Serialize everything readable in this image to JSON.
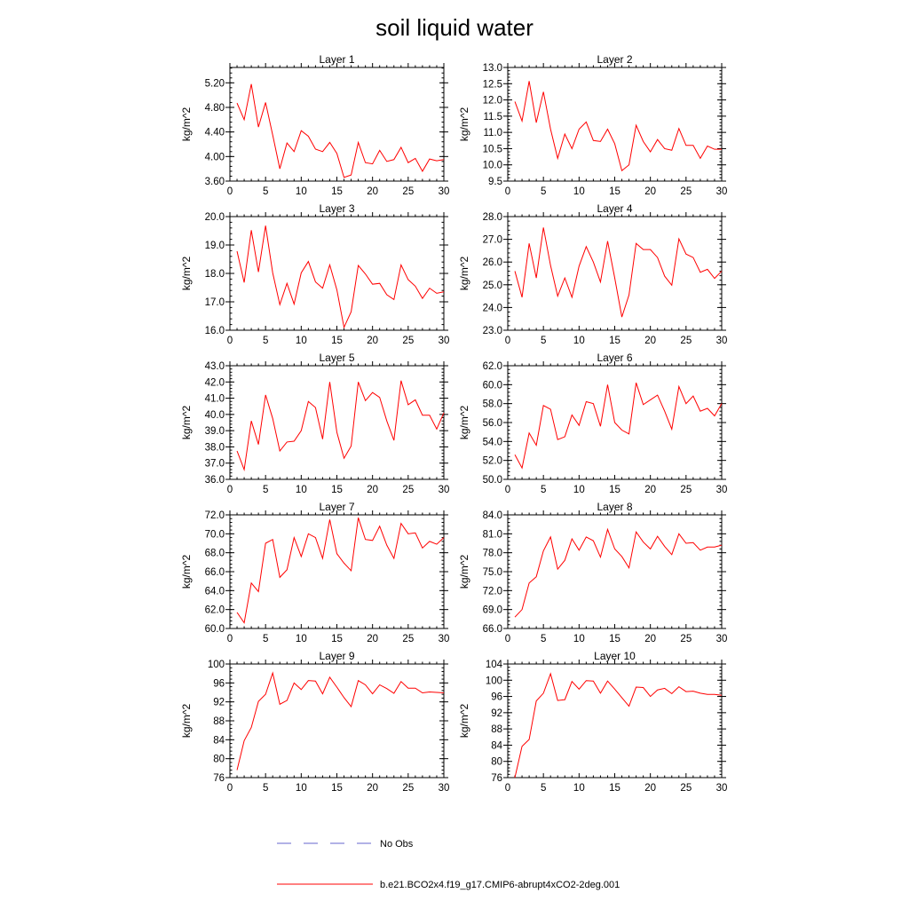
{
  "chart_data": {
    "type": "line",
    "title": "soil liquid water",
    "x": [
      1,
      2,
      3,
      4,
      5,
      6,
      7,
      8,
      9,
      10,
      11,
      12,
      13,
      14,
      15,
      16,
      17,
      18,
      19,
      20,
      21,
      22,
      23,
      24,
      25,
      26,
      27,
      28,
      29,
      30
    ],
    "xlim": [
      0,
      30
    ],
    "xticks": [
      0,
      5,
      10,
      15,
      20,
      25,
      30
    ],
    "legend": {
      "placement": "bottom-center",
      "entries": [
        {
          "name": "No Obs",
          "color": "#6666cc",
          "style": "dashed"
        },
        {
          "name": "b.e21.BCO2x4.f19_g17.CMIP6-abrupt4xCO2-2deg.001",
          "color": "#ff0000",
          "style": "solid"
        }
      ]
    },
    "panels": [
      {
        "title": "Layer 1",
        "ylabel": "kg/m^2",
        "ylim": [
          3.6,
          5.45
        ],
        "yticks": [
          "3.60",
          "4.00",
          "4.40",
          "4.80",
          "5.20"
        ],
        "values": [
          4.87,
          4.6,
          5.18,
          4.48,
          4.88,
          4.35,
          3.8,
          4.22,
          4.08,
          4.42,
          4.33,
          4.12,
          4.08,
          4.23,
          4.05,
          3.66,
          3.7,
          4.23,
          3.9,
          3.88,
          4.1,
          3.92,
          3.95,
          4.15,
          3.9,
          3.97,
          3.76,
          3.96,
          3.93,
          3.95
        ]
      },
      {
        "title": "Layer 2",
        "ylabel": "kg/m^2",
        "ylim": [
          9.5,
          13.0
        ],
        "yticks": [
          "9.5",
          "10.0",
          "10.5",
          "11.0",
          "11.5",
          "12.0",
          "12.5",
          "13.0"
        ],
        "values": [
          11.95,
          11.35,
          12.58,
          11.3,
          12.25,
          11.1,
          10.2,
          10.95,
          10.5,
          11.1,
          11.32,
          10.75,
          10.72,
          11.1,
          10.65,
          9.82,
          10.0,
          11.22,
          10.72,
          10.4,
          10.78,
          10.5,
          10.45,
          11.12,
          10.6,
          10.6,
          10.2,
          10.58,
          10.48,
          10.48
        ]
      },
      {
        "title": "Layer 3",
        "ylabel": "kg/m^2",
        "ylim": [
          16.0,
          20.0
        ],
        "yticks": [
          "16.0",
          "17.0",
          "18.0",
          "19.0",
          "20.0"
        ],
        "values": [
          18.78,
          17.68,
          19.52,
          18.05,
          19.68,
          18.02,
          16.9,
          17.65,
          16.92,
          18.02,
          18.42,
          17.7,
          17.48,
          18.3,
          17.42,
          16.1,
          16.65,
          18.28,
          17.98,
          17.62,
          17.65,
          17.25,
          17.08,
          18.3,
          17.78,
          17.55,
          17.12,
          17.48,
          17.3,
          17.35
        ]
      },
      {
        "title": "Layer 4",
        "ylabel": "kg/m^2",
        "ylim": [
          23.0,
          28.0
        ],
        "yticks": [
          "23.0",
          "24.0",
          "25.0",
          "26.0",
          "27.0",
          "28.0"
        ],
        "values": [
          25.6,
          24.45,
          26.82,
          25.3,
          27.52,
          25.85,
          24.5,
          25.3,
          24.45,
          25.82,
          26.68,
          26.0,
          25.12,
          26.92,
          25.3,
          23.58,
          24.55,
          26.82,
          26.55,
          26.55,
          26.2,
          25.38,
          24.98,
          27.02,
          26.35,
          26.2,
          25.55,
          25.68,
          25.28,
          25.6
        ]
      },
      {
        "title": "Layer 5",
        "ylabel": "kg/m^2",
        "ylim": [
          36.0,
          43.0
        ],
        "yticks": [
          "36.0",
          "37.0",
          "38.0",
          "39.0",
          "40.0",
          "41.0",
          "42.0",
          "43.0"
        ],
        "values": [
          37.75,
          36.6,
          39.6,
          38.15,
          41.2,
          39.75,
          37.75,
          38.3,
          38.35,
          39.0,
          40.8,
          40.42,
          38.48,
          42.0,
          38.9,
          37.3,
          38.05,
          42.0,
          40.85,
          41.35,
          41.05,
          39.6,
          38.4,
          42.08,
          40.6,
          40.9,
          39.95,
          39.95,
          39.1,
          40.1
        ]
      },
      {
        "title": "Layer 6",
        "ylabel": "kg/m^2",
        "ylim": [
          50.0,
          62.0
        ],
        "yticks": [
          "50.0",
          "52.0",
          "54.0",
          "56.0",
          "58.0",
          "60.0",
          "62.0"
        ],
        "values": [
          52.6,
          51.2,
          54.9,
          53.6,
          57.8,
          57.4,
          54.2,
          54.5,
          56.8,
          55.7,
          58.2,
          58.0,
          55.6,
          60.0,
          56.0,
          55.2,
          54.8,
          60.2,
          57.9,
          58.4,
          58.9,
          57.2,
          55.3,
          59.8,
          58.0,
          58.8,
          57.2,
          57.5,
          56.7,
          58.0
        ]
      },
      {
        "title": "Layer 7",
        "ylabel": "kg/m^2",
        "ylim": [
          60.0,
          72.0
        ],
        "yticks": [
          "60.0",
          "62.0",
          "64.0",
          "66.0",
          "68.0",
          "70.0",
          "72.0"
        ],
        "values": [
          61.7,
          60.6,
          64.8,
          63.9,
          69.0,
          69.4,
          65.4,
          66.2,
          69.6,
          67.6,
          70.0,
          69.6,
          67.4,
          71.5,
          67.9,
          66.9,
          66.1,
          71.7,
          69.4,
          69.3,
          70.8,
          68.8,
          67.4,
          71.1,
          70.0,
          70.1,
          68.5,
          69.2,
          68.9,
          69.6
        ]
      },
      {
        "title": "Layer 8",
        "ylabel": "kg/m^2",
        "ylim": [
          66.0,
          84.0
        ],
        "yticks": [
          "66.0",
          "69.0",
          "72.0",
          "75.0",
          "78.0",
          "81.0",
          "84.0"
        ],
        "values": [
          67.8,
          69.0,
          73.2,
          74.2,
          78.3,
          80.5,
          75.4,
          76.8,
          80.2,
          78.4,
          80.5,
          79.9,
          77.3,
          81.7,
          78.6,
          77.4,
          75.6,
          81.3,
          79.7,
          78.6,
          80.6,
          79.0,
          77.7,
          81.0,
          79.5,
          79.6,
          78.4,
          78.9,
          78.9,
          79.2
        ]
      },
      {
        "title": "Layer 9",
        "ylabel": "kg/m^2",
        "ylim": [
          76,
          100
        ],
        "yticks": [
          "76",
          "80",
          "84",
          "88",
          "92",
          "96",
          "100"
        ],
        "values": [
          77.6,
          83.8,
          86.6,
          92.1,
          93.6,
          98.1,
          91.5,
          92.3,
          96.0,
          94.6,
          96.5,
          96.4,
          93.7,
          97.2,
          95.1,
          92.9,
          91.0,
          96.5,
          95.6,
          93.7,
          95.6,
          94.8,
          93.8,
          96.3,
          94.9,
          94.9,
          93.9,
          94.1,
          94.0,
          93.9
        ]
      },
      {
        "title": "Layer 10",
        "ylabel": "kg/m^2",
        "ylim": [
          76,
          104
        ],
        "yticks": [
          "76",
          "80",
          "84",
          "88",
          "92",
          "96",
          "100",
          "104"
        ],
        "values": [
          76.0,
          83.7,
          85.4,
          94.9,
          96.8,
          101.6,
          95.0,
          95.2,
          99.7,
          97.8,
          99.9,
          99.8,
          96.8,
          99.8,
          97.8,
          95.7,
          93.6,
          98.3,
          98.2,
          96.0,
          97.6,
          98.0,
          96.7,
          98.4,
          97.2,
          97.3,
          96.8,
          96.5,
          96.5,
          96.3
        ]
      }
    ]
  }
}
